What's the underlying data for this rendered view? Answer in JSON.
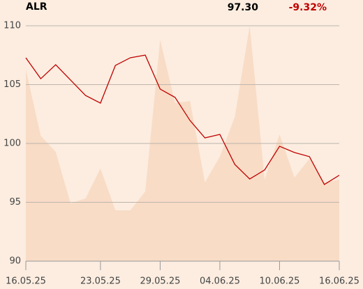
{
  "chart_data": {
    "type": "line",
    "ticker": "ALR",
    "price": "97.30",
    "change": "-9.32%",
    "categories": [
      "16.05.25",
      null,
      null,
      null,
      null,
      "23.05.25",
      null,
      null,
      null,
      "29.05.25",
      null,
      null,
      null,
      "04.06.25",
      null,
      null,
      null,
      "10.06.25",
      null,
      null,
      null,
      "16.06.25"
    ],
    "series": [
      {
        "color": "#f8dcc6",
        "style": "area",
        "values": [
          106.27,
          100.65,
          99.29,
          94.91,
          95.33,
          97.87,
          94.32,
          94.32,
          95.92,
          108.82,
          103.43,
          103.61,
          96.69,
          98.88,
          102.25,
          110,
          96.92,
          100.77,
          97.1,
          98.7,
          96.69,
          96.92
        ]
      },
      {
        "color": "#c00000",
        "style": "line",
        "values": [
          107.28,
          105.5,
          106.69,
          105.38,
          104.08,
          103.43,
          106.63,
          107.28,
          107.51,
          104.62,
          103.91,
          101.95,
          100.47,
          100.77,
          98.22,
          96.98,
          97.75,
          99.76,
          99.23,
          98.88,
          96.51,
          97.3
        ]
      }
    ],
    "ylim": [
      90,
      110
    ],
    "yticks": [
      90,
      95,
      100,
      105,
      110
    ],
    "grid": true
  }
}
